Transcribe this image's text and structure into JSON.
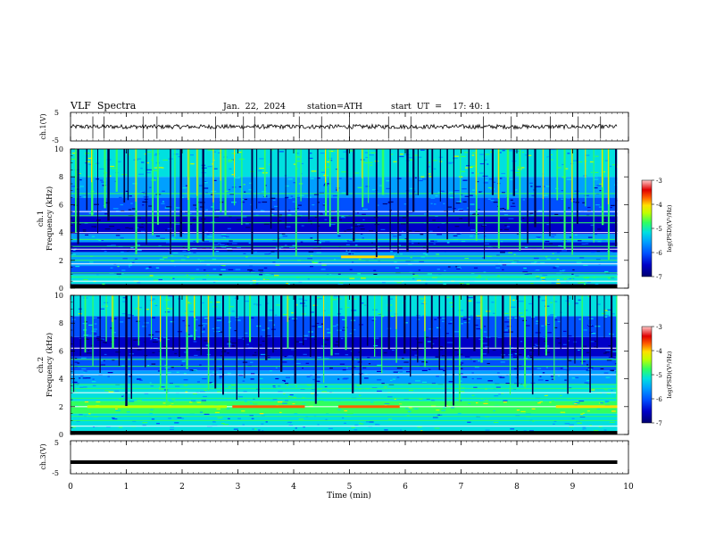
{
  "header": {
    "title": "VLF  Spectra",
    "date": "Jan.  22,  2024",
    "station": "station=ATH",
    "start_ut": "start  UT  =    17: 40: 1"
  },
  "colors": {
    "spectrogram_scale": [
      "#000070",
      "#0000c8",
      "#0050ff",
      "#00a0ff",
      "#00e0e0",
      "#30ff60",
      "#c0ff00",
      "#ffe000",
      "#ff6000",
      "#e00000",
      "#ffc8c8"
    ]
  },
  "chart_data": [
    {
      "type": "line",
      "panel": "ch1",
      "ylabel": "ch.1(V)",
      "ylim": [
        -5,
        5
      ],
      "yticks": [
        "5",
        "-5"
      ],
      "x_range": [
        0,
        9.8
      ],
      "baseline_value": 0,
      "amplitude_range": [
        -1.5,
        1.5
      ],
      "spike_positions_min": [
        0.4,
        0.6,
        1.3,
        1.55,
        2.6,
        3.1,
        3.3,
        4.1,
        4.5,
        5.0,
        5.7,
        6.1,
        7.4,
        7.9,
        8.6,
        9.1,
        9.5
      ]
    },
    {
      "type": "heatmap",
      "panel": "ch1-spectrogram",
      "ylabel": "ch.1\nFrequency  (kHz)",
      "ylim": [
        0,
        10
      ],
      "yticks": [
        "0",
        "2",
        "4",
        "6",
        "8",
        "10"
      ],
      "x_range": [
        0,
        9.8
      ],
      "colorbar": {
        "label": "log(PSD)(V²/Hz)",
        "range": [
          -7,
          -3
        ],
        "ticks": [
          "-3",
          "-4",
          "-5",
          "-6",
          "-7"
        ]
      },
      "bands_kHz": [
        {
          "from": 0,
          "to": 0.3,
          "level": -7
        },
        {
          "from": 0.3,
          "to": 1.0,
          "level": -5.3
        },
        {
          "from": 1.0,
          "to": 1.6,
          "level": -6.1
        },
        {
          "from": 1.6,
          "to": 2.6,
          "level": -5.6
        },
        {
          "from": 2.6,
          "to": 3.3,
          "level": -6.3
        },
        {
          "from": 3.3,
          "to": 3.9,
          "level": -5.9
        },
        {
          "from": 3.9,
          "to": 5.2,
          "level": -6.6
        },
        {
          "from": 5.2,
          "to": 6.5,
          "level": -6.2
        },
        {
          "from": 6.5,
          "to": 8.0,
          "level": -5.8
        },
        {
          "from": 8.0,
          "to": 10.0,
          "level": -5.3
        }
      ],
      "lines_kHz": [
        0.5,
        0.8,
        1.1,
        1.75,
        2.0,
        2.3,
        2.8,
        3.0,
        3.5,
        4.0,
        4.7,
        5.2,
        5.5,
        6.8
      ],
      "highlight_segments": [
        {
          "x_from": 4.85,
          "x_to": 5.8,
          "freq_kHz": 2.25,
          "level": -4.4
        }
      ],
      "sferic_positions_min": [
        0.08,
        0.12,
        0.28,
        0.37,
        0.48,
        0.6,
        0.66,
        0.81,
        0.95,
        1.02,
        1.16,
        1.35,
        1.46,
        1.55,
        1.78,
        1.86,
        1.96,
        2.1,
        2.26,
        2.36,
        2.55,
        2.68,
        2.76,
        2.93,
        3.06,
        3.24,
        3.33,
        3.47,
        3.58,
        3.71,
        3.85,
        4.03,
        4.12,
        4.26,
        4.42,
        4.56,
        4.64,
        4.78,
        4.94,
        5.06,
        5.22,
        5.33,
        5.47,
        5.58,
        5.72,
        5.86,
        6.02,
        6.13,
        6.22,
        6.38,
        6.47,
        6.62,
        6.74,
        6.86,
        6.98,
        7.13,
        7.26,
        7.41,
        7.55,
        7.66,
        7.82,
        7.93,
        8.04,
        8.18,
        8.31,
        8.46,
        8.58,
        8.71,
        8.84,
        8.98,
        9.07,
        9.22,
        9.37,
        9.52,
        9.63,
        9.76
      ]
    },
    {
      "type": "heatmap",
      "panel": "ch2-spectrogram",
      "ylabel": "ch.2\nFrequency  (kHz)",
      "ylim": [
        0,
        10
      ],
      "yticks": [
        "0",
        "2",
        "4",
        "6",
        "8",
        "10"
      ],
      "x_range": [
        0,
        9.8
      ],
      "colorbar": {
        "label": "log(PSD)(V²/Hz)",
        "range": [
          -7,
          -3
        ],
        "ticks": [
          "-3",
          "-4",
          "-5",
          "-6",
          "-7"
        ]
      },
      "bands_kHz": [
        {
          "from": 0,
          "to": 0.2,
          "level": -7
        },
        {
          "from": 0.2,
          "to": 1.5,
          "level": -5.5
        },
        {
          "from": 1.5,
          "to": 2.4,
          "level": -4.9
        },
        {
          "from": 2.4,
          "to": 3.6,
          "level": -5.4
        },
        {
          "from": 3.6,
          "to": 4.6,
          "level": -5.9
        },
        {
          "from": 4.6,
          "to": 5.6,
          "level": -6.2
        },
        {
          "from": 5.6,
          "to": 7.0,
          "level": -6.5
        },
        {
          "from": 7.0,
          "to": 8.5,
          "level": -6.0
        },
        {
          "from": 8.5,
          "to": 10.0,
          "level": -5.4
        }
      ],
      "lines_kHz": [
        0.6,
        1.0,
        1.3,
        2.0,
        2.15,
        2.6,
        3.0,
        3.3,
        3.6,
        4.3,
        4.9,
        5.4,
        6.2
      ],
      "highlight_segments": [
        {
          "x_from": 2.9,
          "x_to": 4.2,
          "freq_kHz": 2.0,
          "level": -3.9
        },
        {
          "x_from": 4.8,
          "x_to": 5.9,
          "freq_kHz": 2.0,
          "level": -3.9
        },
        {
          "x_from": 8.7,
          "x_to": 9.8,
          "freq_kHz": 2.0,
          "level": -4.1
        },
        {
          "x_from": 0.3,
          "x_to": 2.8,
          "freq_kHz": 2.0,
          "level": -4.5
        }
      ],
      "sferic_positions_min": [
        0.05,
        0.17,
        0.25,
        0.39,
        0.52,
        0.63,
        0.74,
        0.86,
        0.98,
        1.08,
        1.21,
        1.33,
        1.44,
        1.6,
        1.71,
        1.83,
        1.94,
        2.07,
        2.21,
        2.33,
        2.46,
        2.58,
        2.72,
        2.84,
        2.97,
        3.11,
        3.2,
        3.36,
        3.49,
        3.62,
        3.76,
        3.88,
        4.01,
        4.16,
        4.29,
        4.38,
        4.53,
        4.66,
        4.8,
        4.92,
        5.04,
        5.18,
        5.31,
        5.44,
        5.57,
        5.69,
        5.83,
        5.97,
        6.08,
        6.21,
        6.34,
        6.46,
        6.6,
        6.71,
        6.85,
        6.96,
        7.1,
        7.22,
        7.35,
        7.48,
        7.61,
        7.73,
        7.87,
        8.0,
        8.13,
        8.27,
        8.38,
        8.51,
        8.66,
        8.78,
        8.9,
        9.03,
        9.16,
        9.3,
        9.43,
        9.56,
        9.68,
        9.78
      ]
    },
    {
      "type": "line",
      "panel": "ch3",
      "ylabel": "ch.3(V)",
      "ylim": [
        -5,
        5
      ],
      "yticks": [
        "5",
        "-5"
      ],
      "x_range": [
        0,
        9.8
      ],
      "baseline_value": -1.5,
      "amplitude_range": [
        -0.3,
        0.3
      ]
    }
  ],
  "xaxis": {
    "label": "Time  (min)",
    "range": [
      0,
      10
    ],
    "ticks": [
      "0",
      "1",
      "2",
      "3",
      "4",
      "5",
      "6",
      "7",
      "8",
      "9",
      "10"
    ]
  }
}
